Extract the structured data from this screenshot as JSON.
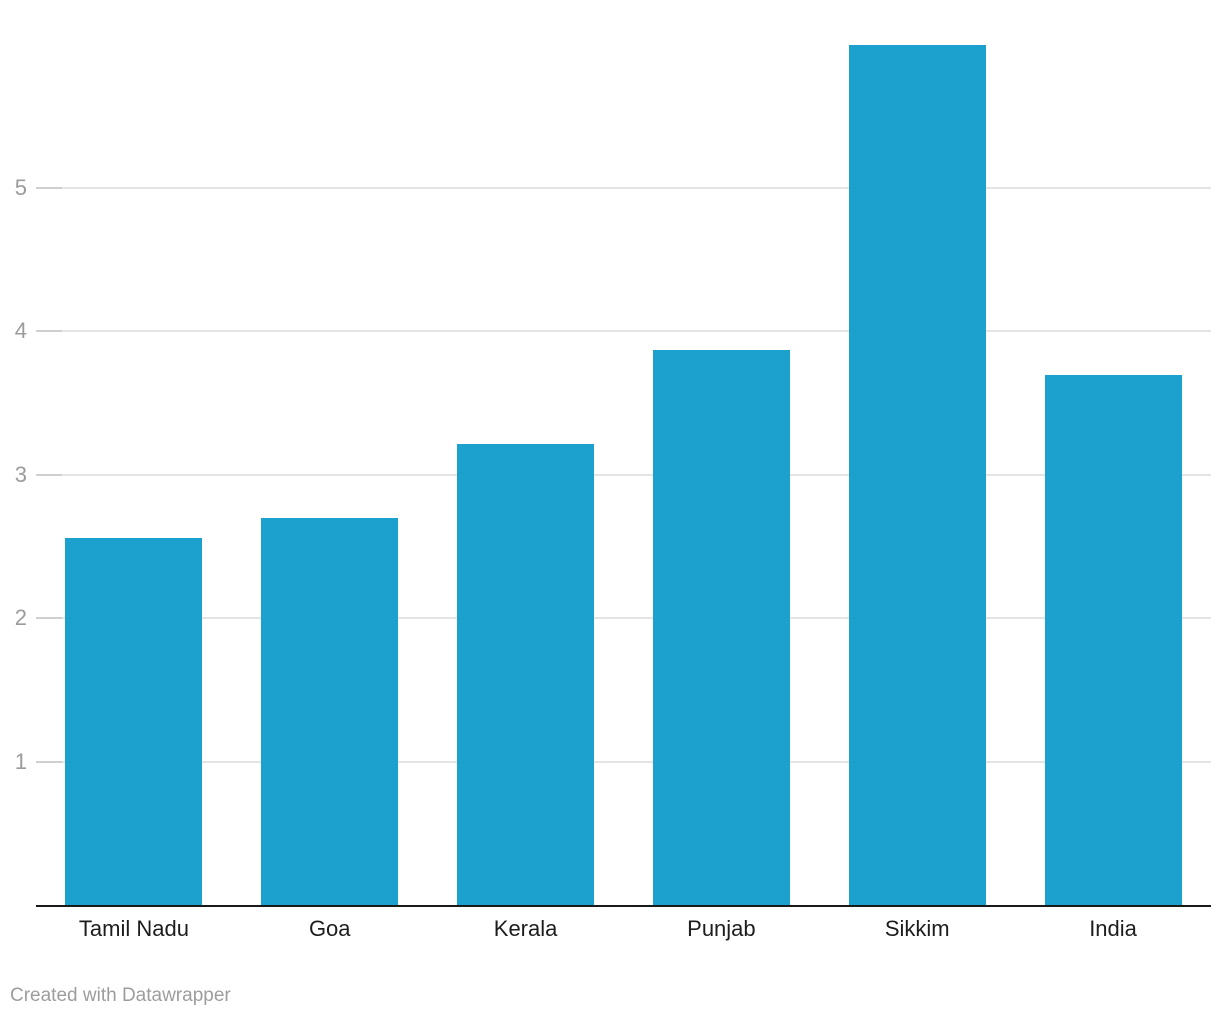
{
  "chart_data": {
    "type": "bar",
    "categories": [
      "Tamil Nadu",
      "Goa",
      "Kerala",
      "Punjab",
      "Sikkim",
      "India"
    ],
    "values": [
      2.56,
      2.7,
      3.21,
      3.87,
      5.99,
      3.69
    ],
    "title": "",
    "xlabel": "",
    "ylabel": "",
    "y_ticks": [
      1,
      2,
      3,
      4,
      5
    ],
    "ylim": [
      0,
      6.17
    ],
    "grid": "horizontal",
    "legend": "none",
    "colors": {
      "bar": "#1CA0CE",
      "gridline": "#E4E4E4",
      "tick_mark": "#CFCFCF",
      "axis_line": "#191919",
      "y_tick_label": "#9B9B9B",
      "x_tick_label": "#1D1D1D"
    }
  },
  "footer": {
    "text": "Created with Datawrapper",
    "color": "#9D9D9D"
  }
}
